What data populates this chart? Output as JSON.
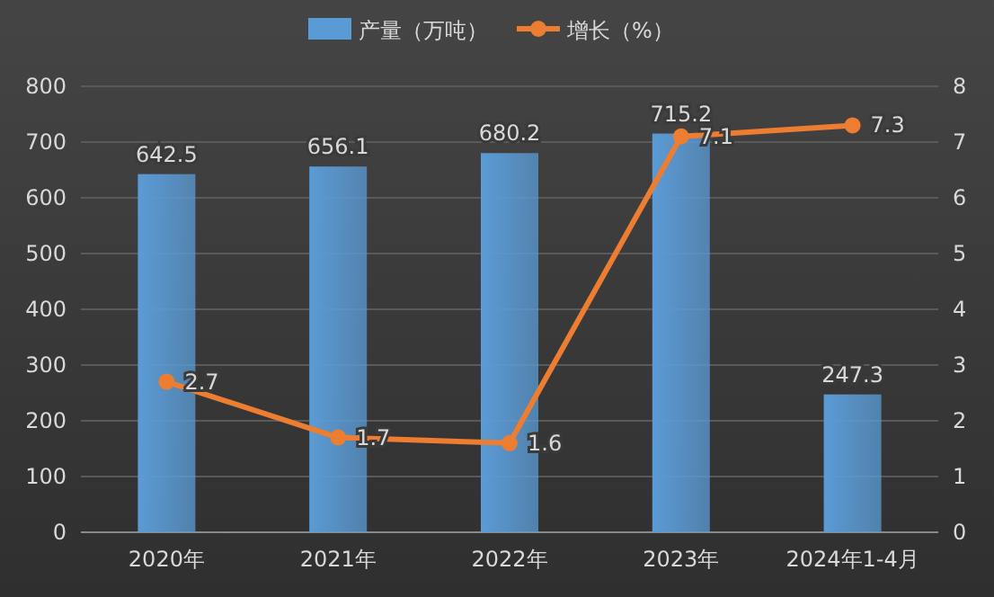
{
  "chart_data": {
    "type": "bar",
    "categories": [
      "2020年",
      "2021年",
      "2022年",
      "2023年",
      "2024年1-4月"
    ],
    "series": [
      {
        "name": "产量（万吨）",
        "color": "#5b9bd5",
        "values": [
          642.5,
          656.1,
          680.2,
          715.2,
          247.3
        ]
      },
      {
        "name": "增长（%）",
        "type": "line",
        "axis": "y2",
        "color": "#ed7d31",
        "values": [
          2.7,
          1.7,
          1.6,
          7.1,
          7.3
        ]
      }
    ],
    "ylim": [
      0,
      800
    ],
    "yticks": [
      0,
      100,
      200,
      300,
      400,
      500,
      600,
      700,
      800
    ],
    "y2lim": [
      0,
      8
    ],
    "y2ticks": [
      0,
      1,
      2,
      3,
      4,
      5,
      6,
      7,
      8
    ],
    "grid": "y",
    "legend": "top",
    "marker": "circle",
    "line_style": "solid",
    "data_labels": true
  }
}
